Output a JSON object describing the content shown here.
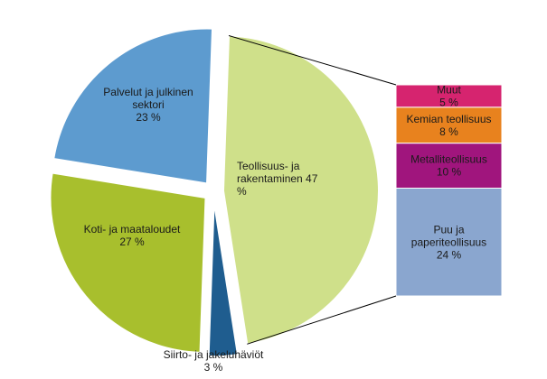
{
  "chart_data": {
    "type": "pie",
    "pie": {
      "slices": [
        {
          "label": [
            "Teollisuus- ja",
            "rakentaminen 47",
            "%"
          ],
          "value": 47,
          "color": "#cfe08a"
        },
        {
          "label": [
            "Siirto- ja jakeluhäviöt",
            "3 %"
          ],
          "value": 3,
          "color": "#1f5d8f"
        },
        {
          "label": [
            "Koti- ja maataloudet",
            "27 %"
          ],
          "value": 27,
          "color": "#a8bf2d"
        },
        {
          "label": [
            "Palvelut ja julkinen",
            "sektori",
            "23 %"
          ],
          "value": 23,
          "color": "#5d9bcf"
        }
      ]
    },
    "breakdown": {
      "of": "Teollisuus- ja rakentaminen",
      "segments": [
        {
          "label": [
            "Muut",
            "5 %"
          ],
          "value": 5,
          "color": "#d6246f"
        },
        {
          "label": [
            "Kemian teollisuus",
            "8 %"
          ],
          "value": 8,
          "color": "#e8821e"
        },
        {
          "label": [
            "Metalliteollisuus",
            "10 %"
          ],
          "value": 10,
          "color": "#a0157d"
        },
        {
          "label": [
            "Puu ja",
            "paperiteollisuus",
            "24 %"
          ],
          "value": 24,
          "color": "#8aa6cf"
        }
      ]
    }
  }
}
